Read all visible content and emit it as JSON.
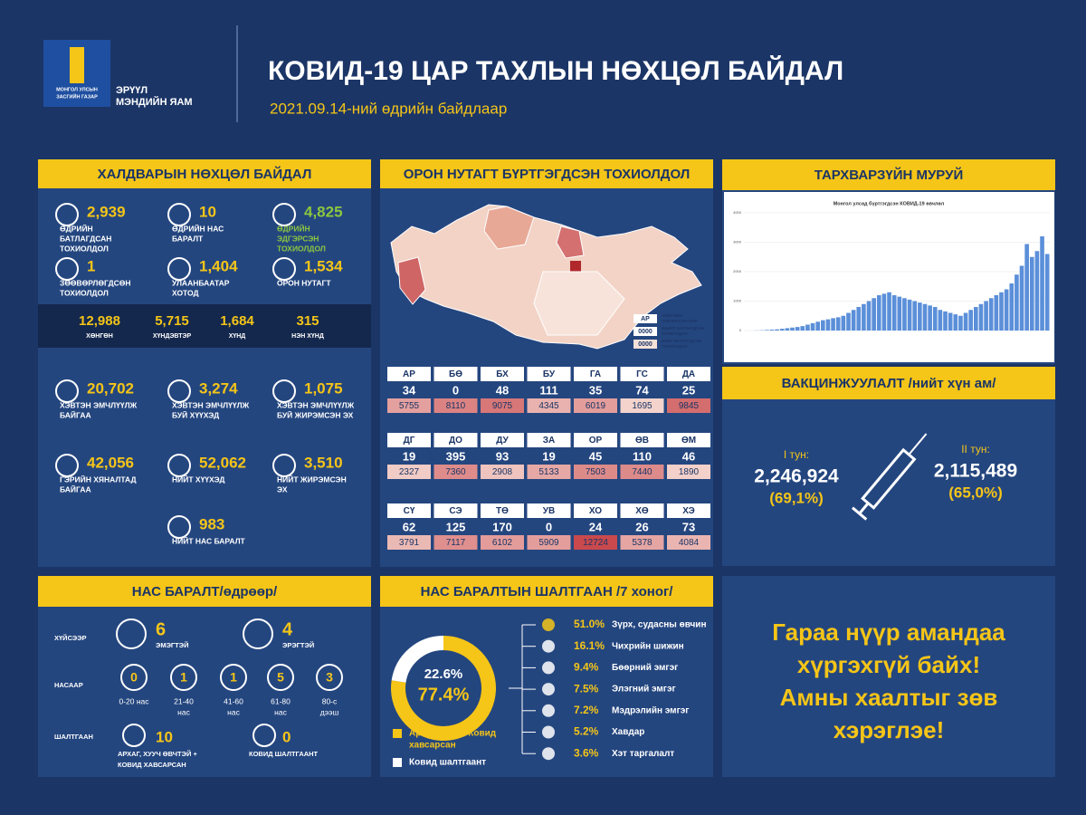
{
  "header": {
    "logo_text": [
      "МОНГОЛ УЛСЫН",
      "ЗАСГИЙН ГАЗАР"
    ],
    "ministry": [
      "ЭРҮҮЛ",
      "МЭНДИЙН ЯАМ"
    ],
    "title": "КОВИД-19 ЦАР ТАХЛЫН НӨХЦӨЛ БАЙДАЛ",
    "subtitle": "2021.09.14-ний өдрийн байдлаар"
  },
  "infection": {
    "title": "ХАЛДВАРЫН НӨХЦӨЛ БАЙДАЛ",
    "stats": [
      [
        {
          "value": "2,939",
          "label": [
            "ӨДРИЙН",
            "БАТЛАГДСАН",
            "ТОХИОЛДОЛ"
          ]
        },
        {
          "value": "10",
          "label": [
            "ӨДРИЙН НАС",
            "БАРАЛТ"
          ]
        },
        {
          "value": "4,825",
          "label": [
            "ӨДРИЙН",
            "ЭДГЭРСЭН",
            "ТОХИОЛДОЛ"
          ],
          "color": "#8cc63f"
        }
      ],
      [
        {
          "value": "1",
          "label": [
            "ЗӨӨВӨРЛӨГДСӨН",
            "ТОХИОЛДОЛ"
          ]
        },
        {
          "value": "1,404",
          "label": [
            "УЛААНБААТАР",
            "ХОТОД"
          ]
        },
        {
          "value": "1,534",
          "label": [
            "ОРОН НУТАГТ"
          ]
        }
      ]
    ],
    "severity": [
      {
        "value": "12,988",
        "label": "ХӨНГӨН"
      },
      {
        "value": "5,715",
        "label": "ХҮНДЭВТЭР"
      },
      {
        "value": "1,684",
        "label": "ХҮНД"
      },
      {
        "value": "315",
        "label": "НЭН ХҮНД"
      }
    ],
    "hospital": [
      [
        {
          "value": "20,702",
          "label": [
            "ХЭВТЭН ЭМЧЛҮҮЛЖ",
            "БАЙГАА"
          ]
        },
        {
          "value": "3,274",
          "label": [
            "ХЭВТЭН ЭМЧЛҮҮЛЖ",
            "БУЙ ХҮҮХЭД"
          ]
        },
        {
          "value": "1,075",
          "label": [
            "ХЭВТЭН ЭМЧЛҮҮЛЖ",
            "БУЙ ЖИРЭМСЭН ЭХ"
          ]
        }
      ],
      [
        {
          "value": "42,056",
          "label": [
            "ГЭРИЙН ХЯНАЛТАД",
            "БАЙГАА"
          ]
        },
        {
          "value": "52,062",
          "label": [
            "НИЙТ ХҮҮХЭД"
          ]
        },
        {
          "value": "3,510",
          "label": [
            "НИЙТ ЖИРЭМСЭН",
            "ЭХ"
          ]
        }
      ]
    ],
    "total_deaths": {
      "value": "983",
      "label": [
        "НИЙТ НАС БАРАЛТ"
      ]
    }
  },
  "regional": {
    "title": "ОРОН НУТАГТ БҮРТГЭГДСЭН ТОХИОЛДОЛ",
    "legend": [
      {
        "sample": "АР",
        "text": [
          "АЙМГИЙН",
          "ТОВЧИЛСОН НЭР"
        ]
      },
      {
        "sample": "0000",
        "text": [
          "ӨДӨРТ БАТЛАГДСАН",
          "ТОХИОЛДОЛ"
        ]
      },
      {
        "sample": "0000",
        "text": [
          "НИЙТ БАТЛАГДСАН",
          "ТОХИОЛДОЛ"
        ]
      }
    ],
    "regions": [
      {
        "code": "АР",
        "daily": 34,
        "total": 5755
      },
      {
        "code": "БӨ",
        "daily": 0,
        "total": 8110
      },
      {
        "code": "БХ",
        "daily": 48,
        "total": 9075
      },
      {
        "code": "БУ",
        "daily": 111,
        "total": 4345
      },
      {
        "code": "ГА",
        "daily": 35,
        "total": 6019
      },
      {
        "code": "ГС",
        "daily": 74,
        "total": 1695
      },
      {
        "code": "ДА",
        "daily": 25,
        "total": 9845
      },
      {
        "code": "ДГ",
        "daily": 19,
        "total": 2327
      },
      {
        "code": "ДО",
        "daily": 395,
        "total": 7360
      },
      {
        "code": "ДУ",
        "daily": 93,
        "total": 2908
      },
      {
        "code": "ЗА",
        "daily": 19,
        "total": 5133
      },
      {
        "code": "ОР",
        "daily": 45,
        "total": 7503
      },
      {
        "code": "ӨВ",
        "daily": 110,
        "total": 7440
      },
      {
        "code": "ӨМ",
        "daily": 46,
        "total": 1890
      },
      {
        "code": "СҮ",
        "daily": 62,
        "total": 3791
      },
      {
        "code": "СЭ",
        "daily": 125,
        "total": 7117
      },
      {
        "code": "ТӨ",
        "daily": 170,
        "total": 6102
      },
      {
        "code": "УВ",
        "daily": 0,
        "total": 5909
      },
      {
        "code": "ХО",
        "daily": 24,
        "total": 12724
      },
      {
        "code": "ХӨ",
        "daily": 26,
        "total": 5378
      },
      {
        "code": "ХЭ",
        "daily": 73,
        "total": 4084
      }
    ]
  },
  "epi_curve": {
    "title": "ТАРХВАРЗҮЙН МУРУЙ",
    "chart_title": "Монгол улсад бүртгэгдсэн КОВИД-19 өвчлөл",
    "ylim": [
      0,
      4000
    ],
    "yticks": [
      0,
      1000,
      2000,
      3000,
      4000
    ],
    "color": "#5b8fd9",
    "values": [
      0,
      0,
      5,
      10,
      20,
      30,
      40,
      60,
      80,
      100,
      120,
      150,
      200,
      250,
      300,
      350,
      380,
      420,
      450,
      500,
      600,
      700,
      800,
      900,
      1000,
      1100,
      1200,
      1250,
      1300,
      1200,
      1150,
      1100,
      1050,
      1000,
      950,
      900,
      850,
      800,
      700,
      650,
      600,
      550,
      500,
      600,
      700,
      800,
      900,
      1000,
      1100,
      1200,
      1300,
      1400,
      1600,
      1900,
      2200,
      2939,
      2500,
      2700,
      3200,
      2600
    ]
  },
  "vaccination": {
    "title": "ВАКЦИНЖУУЛАЛТ /нийт хүн ам/",
    "doses": [
      {
        "label": "I тун:",
        "value": "2,246,924",
        "pct": "(69,1%)"
      },
      {
        "label": "II тун:",
        "value": "2,115,489",
        "pct": "(65,0%)"
      }
    ]
  },
  "deaths": {
    "title": "НАС БАРАЛТ/өдрөөр/",
    "sex_label": "ХҮЙСЭЭР",
    "sex": [
      {
        "value": "6",
        "label": "ЭМЭГТЭЙ"
      },
      {
        "value": "4",
        "label": "ЭРЭГТЭЙ"
      }
    ],
    "age_label": "НАСААР",
    "ages": [
      {
        "value": "0",
        "label": [
          "0-20 нас"
        ]
      },
      {
        "value": "1",
        "label": [
          "21-40",
          "нас"
        ]
      },
      {
        "value": "1",
        "label": [
          "41-60",
          "нас"
        ]
      },
      {
        "value": "5",
        "label": [
          "61-80",
          "нас"
        ]
      },
      {
        "value": "3",
        "label": [
          "80-с",
          "дээш"
        ]
      }
    ],
    "cause_label": "ШАЛТГААН",
    "causes": [
      {
        "value": "10",
        "label": [
          "АРХАГ, ХУУЧ ӨВЧТЭЙ +",
          "КОВИД ХАВСАРСАН"
        ]
      },
      {
        "value": "0",
        "label": [
          "КОВИД ШАЛТГААНТ"
        ]
      }
    ]
  },
  "causes": {
    "title": "НАС БАРАЛТЫН ШАЛТГААН /7 хоног/",
    "donut": {
      "values": [
        77.4,
        22.6
      ],
      "value_labels": [
        "77.4%",
        "22.6%"
      ],
      "colors": [
        "#f5c518",
        "#ffffff"
      ],
      "legend": [
        [
          "Архаг хууч + Ковид",
          "хавсарсан"
        ],
        [
          "Ковид шалтгаант"
        ]
      ]
    },
    "list": [
      {
        "pct": "51.0%",
        "label": "Зүрх, судасны өвчин"
      },
      {
        "pct": "16.1%",
        "label": "Чихрийн шижин"
      },
      {
        "pct": "9.4%",
        "label": "Бөөрний эмгэг"
      },
      {
        "pct": "7.5%",
        "label": "Элэгний эмгэг"
      },
      {
        "pct": "7.2%",
        "label": "Мэдрэлийн эмгэг"
      },
      {
        "pct": "5.2%",
        "label": "Хавдар"
      },
      {
        "pct": "3.6%",
        "label": "Хэт таргалалт"
      }
    ]
  },
  "slogan": [
    "Гараа нүүр амандаа",
    "хүргэхгүй байх!",
    "Амны хаалтыг зөв",
    "хэрэглэе!"
  ]
}
